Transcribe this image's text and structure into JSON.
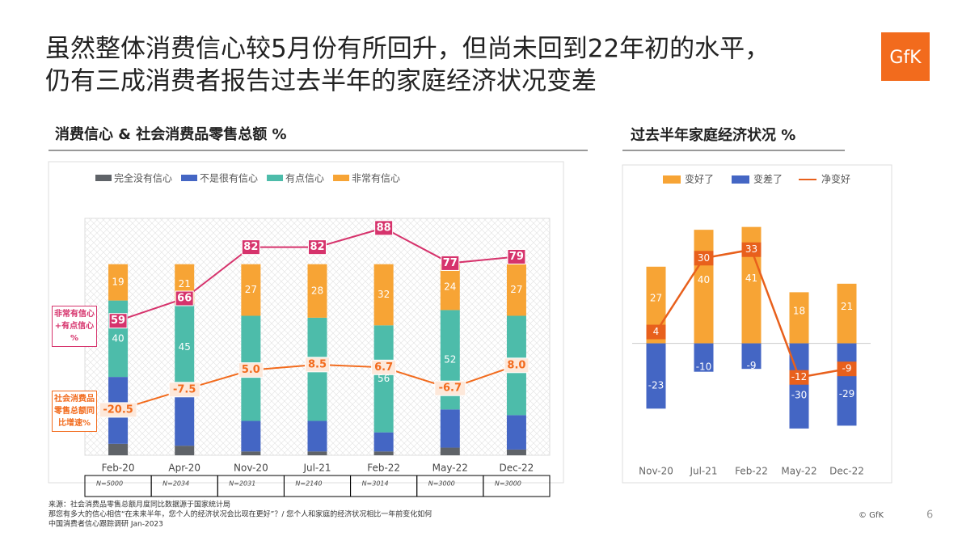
{
  "title_lines": [
    "虽然整体消费信心较5月份有所回升，但尚未回到22年初的水平，",
    "仍有三成消费者报告过去半年的家庭经济状况变差"
  ],
  "logo": "GfK",
  "footer_notes": [
    "来源：社会消费品零售总额月度同比数据源于国家统计局",
    "那您有多大的信心相信“在未来半年，您个人的经济状况会比现在更好”？/ 您个人和家庭的经济状况相比一年前变化如何",
    "中国消费者信心跟踪调研 Jan-2023"
  ],
  "copyright": "© GfK",
  "page_number": "6",
  "chart_data": [
    {
      "type": "stacked_bar",
      "title": "消费信心 & 社会消费品零售总额 %",
      "categories": [
        "Feb-20",
        "Apr-20",
        "Nov-20",
        "Jul-21",
        "Feb-22",
        "May-22",
        "Dec-22"
      ],
      "sample_sizes": [
        "N=5000",
        "N=2034",
        "N=2031",
        "N=2140",
        "N=3014",
        "N=3000",
        "N=3000"
      ],
      "ylim": [
        0,
        124
      ],
      "series": [
        {
          "name": "完全没有信心",
          "color": "#5f6368",
          "values": [
            6,
            5,
            2,
            2,
            2,
            4,
            3
          ],
          "labels": false
        },
        {
          "name": "不是很有信心",
          "color": "#4466c4",
          "values": [
            35,
            29,
            16,
            16,
            10,
            20,
            18
          ],
          "labels": false
        },
        {
          "name": "有点信心",
          "color": "#4dbcaa",
          "values": [
            40,
            45,
            55,
            54,
            56,
            52,
            52
          ],
          "labels": true
        },
        {
          "name": "非常有信心",
          "color": "#f7a435",
          "values": [
            19,
            21,
            27,
            28,
            32,
            24,
            27
          ],
          "labels": true
        }
      ],
      "lines": [
        {
          "name": "非常有信心+有点信心 %",
          "color": "#d6336c",
          "values": [
            59,
            66,
            82,
            82,
            88,
            77,
            79
          ],
          "ylim": [
            17,
            91
          ]
        },
        {
          "name": "社会消费品零售总额同比增速%",
          "color": "#f26b1d",
          "values": [
            -20.5,
            -7.5,
            5.0,
            8.5,
            6.7,
            -6.7,
            8.0
          ],
          "value_labels": [
            "-20.5",
            "-7.5",
            "5.0",
            "8.5",
            "6.7",
            "-6.7",
            "8.0"
          ],
          "ylim": [
            -49.5,
            102
          ]
        }
      ]
    },
    {
      "type": "diverging_bar",
      "title": "过去半年家庭经济状况 %",
      "categories": [
        "Nov-20",
        "Jul-21",
        "Feb-22",
        "May-22",
        "Dec-22"
      ],
      "ylim": [
        -40,
        54
      ],
      "series": [
        {
          "name": "变好了",
          "color": "#f7a435",
          "values": [
            27,
            40,
            41,
            18,
            21
          ]
        },
        {
          "name": "变差了",
          "color": "#4466c4",
          "values": [
            -23,
            -10,
            -9,
            -30,
            -29
          ]
        }
      ],
      "line": {
        "name": "净变好",
        "color": "#e8601c",
        "values": [
          4,
          30,
          33,
          -12,
          -9
        ]
      }
    }
  ]
}
